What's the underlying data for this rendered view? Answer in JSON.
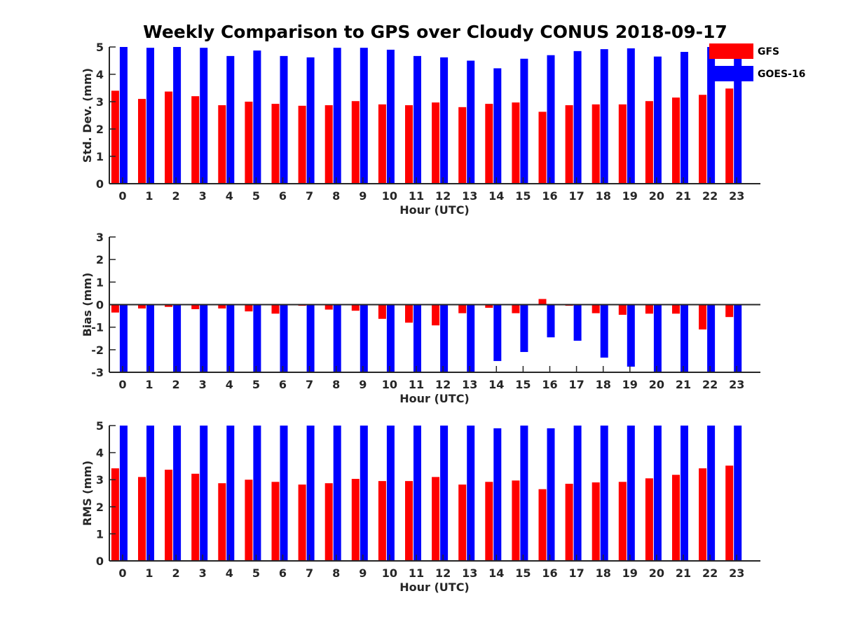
{
  "chart_data": {
    "title": "Weekly Comparison to GPS over Cloudy CONUS 2018-09-17",
    "legend": {
      "entries": [
        "GFS",
        "GOES-16"
      ],
      "position": "top-right"
    },
    "colors": {
      "GFS": "#ff0000",
      "GOES-16": "#0000ff"
    },
    "panels": [
      {
        "type": "bar",
        "xlabel": "Hour (UTC)",
        "ylabel": "Std. Dev. (mm)",
        "ylim": [
          0,
          5
        ],
        "yticks": [
          0,
          1,
          2,
          3,
          4,
          5
        ],
        "categories": [
          "0",
          "1",
          "2",
          "3",
          "4",
          "5",
          "6",
          "7",
          "8",
          "9",
          "10",
          "11",
          "12",
          "13",
          "14",
          "15",
          "16",
          "17",
          "18",
          "19",
          "20",
          "21",
          "22",
          "23"
        ],
        "series": [
          {
            "name": "GFS",
            "values": [
              3.4,
              3.1,
              3.37,
              3.2,
              2.87,
              3.0,
              2.92,
              2.85,
              2.87,
              3.02,
              2.9,
              2.87,
              2.97,
              2.8,
              2.92,
              2.97,
              2.63,
              2.87,
              2.9,
              2.9,
              3.02,
              3.15,
              3.25,
              3.48
            ]
          },
          {
            "name": "GOES-16",
            "values": [
              5.0,
              4.97,
              5.0,
              4.97,
              4.67,
              4.87,
              4.67,
              4.62,
              4.97,
              4.97,
              4.9,
              4.67,
              4.62,
              4.5,
              4.22,
              4.57,
              4.7,
              4.85,
              4.92,
              4.95,
              4.65,
              4.82,
              5.0,
              4.6
            ]
          }
        ]
      },
      {
        "type": "bar",
        "xlabel": "Hour (UTC)",
        "ylabel": "Bias (mm)",
        "ylim": [
          -3,
          3
        ],
        "yticks": [
          -3,
          -2,
          -1,
          0,
          1,
          2,
          3
        ],
        "categories": [
          "0",
          "1",
          "2",
          "3",
          "4",
          "5",
          "6",
          "7",
          "8",
          "9",
          "10",
          "11",
          "12",
          "13",
          "14",
          "15",
          "16",
          "17",
          "18",
          "19",
          "20",
          "21",
          "22",
          "23"
        ],
        "series": [
          {
            "name": "GFS",
            "values": [
              -0.35,
              -0.17,
              -0.1,
              -0.2,
              -0.17,
              -0.3,
              -0.4,
              -0.05,
              -0.22,
              -0.27,
              -0.63,
              -0.8,
              -0.92,
              -0.38,
              -0.14,
              -0.38,
              0.25,
              -0.05,
              -0.38,
              -0.45,
              -0.4,
              -0.4,
              -1.1,
              -0.55
            ]
          },
          {
            "name": "GOES-16",
            "values": [
              -3.0,
              -3.0,
              -3.0,
              -3.0,
              -3.0,
              -3.0,
              -3.0,
              -3.0,
              -3.0,
              -3.0,
              -3.0,
              -3.0,
              -3.0,
              -3.0,
              -2.5,
              -2.1,
              -1.45,
              -1.6,
              -2.35,
              -2.75,
              -3.0,
              -3.0,
              -3.0,
              -3.0
            ]
          }
        ]
      },
      {
        "type": "bar",
        "xlabel": "Hour (UTC)",
        "ylabel": "RMS (mm)",
        "ylim": [
          0,
          5
        ],
        "yticks": [
          0,
          1,
          2,
          3,
          4,
          5
        ],
        "categories": [
          "0",
          "1",
          "2",
          "3",
          "4",
          "5",
          "6",
          "7",
          "8",
          "9",
          "10",
          "11",
          "12",
          "13",
          "14",
          "15",
          "16",
          "17",
          "18",
          "19",
          "20",
          "21",
          "22",
          "23"
        ],
        "series": [
          {
            "name": "GFS",
            "values": [
              3.42,
              3.1,
              3.37,
              3.22,
              2.87,
              3.0,
              2.92,
              2.82,
              2.87,
              3.03,
              2.95,
              2.95,
              3.1,
              2.82,
              2.92,
              2.97,
              2.65,
              2.85,
              2.9,
              2.92,
              3.05,
              3.18,
              3.42,
              3.52
            ]
          },
          {
            "name": "GOES-16",
            "values": [
              5.0,
              5.0,
              5.0,
              5.0,
              5.0,
              5.0,
              5.0,
              5.0,
              5.0,
              5.0,
              5.0,
              5.0,
              5.0,
              5.0,
              4.9,
              5.0,
              4.9,
              5.0,
              5.0,
              5.0,
              5.0,
              5.0,
              5.0,
              5.0
            ]
          }
        ]
      }
    ]
  }
}
